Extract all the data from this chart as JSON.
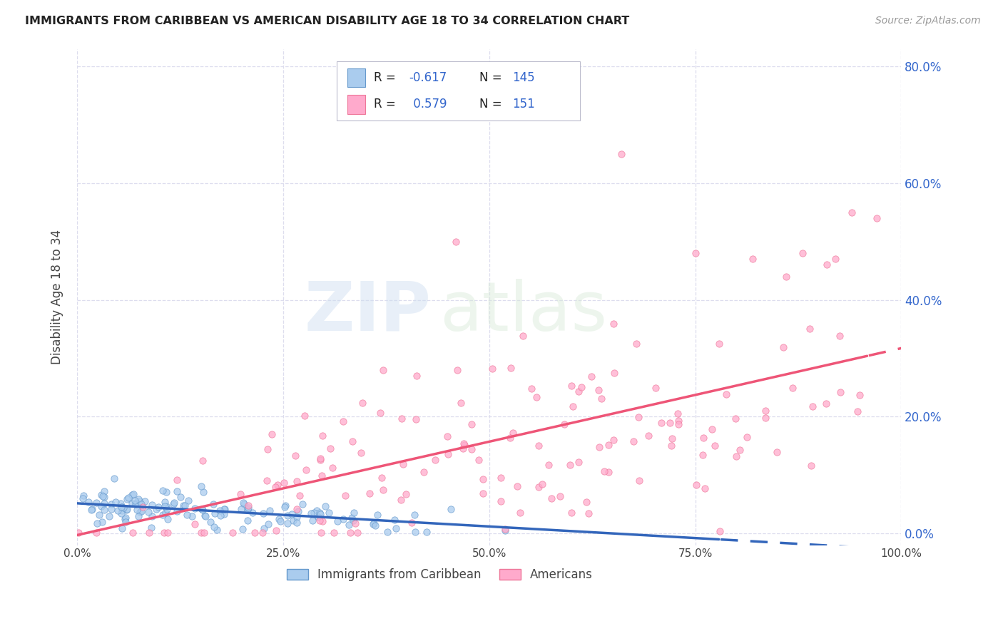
{
  "title": "IMMIGRANTS FROM CARIBBEAN VS AMERICAN DISABILITY AGE 18 TO 34 CORRELATION CHART",
  "source": "Source: ZipAtlas.com",
  "ylabel": "Disability Age 18 to 34",
  "blue_fill": "#AACCEE",
  "blue_edge": "#6699CC",
  "pink_fill": "#FFAACC",
  "pink_edge": "#EE7799",
  "trend_blue": "#3366BB",
  "trend_pink": "#EE5577",
  "grid_color": "#DDDDEE",
  "bg_color": "#FFFFFF",
  "right_label_color": "#3366CC",
  "text_color": "#444444",
  "source_color": "#999999",
  "blue_R": -0.617,
  "pink_R": 0.579,
  "blue_N": 145,
  "pink_N": 151,
  "xlim": [
    0.0,
    1.0
  ],
  "ylim": [
    -0.02,
    0.83
  ],
  "yticks": [
    0.0,
    0.2,
    0.4,
    0.6,
    0.8
  ],
  "xticks": [
    0.0,
    0.25,
    0.5,
    0.75,
    1.0
  ],
  "xtick_labels": [
    "0.0%",
    "25.0%",
    "50.0%",
    "75.0%",
    "100.0%"
  ],
  "ytick_labels": [
    "0.0%",
    "20.0%",
    "40.0%",
    "60.0%",
    "80.0%"
  ],
  "legend1_label": "Immigrants from Caribbean",
  "legend2_label": "Americans",
  "watermark_zip": "ZIP",
  "watermark_atlas": "atlas"
}
